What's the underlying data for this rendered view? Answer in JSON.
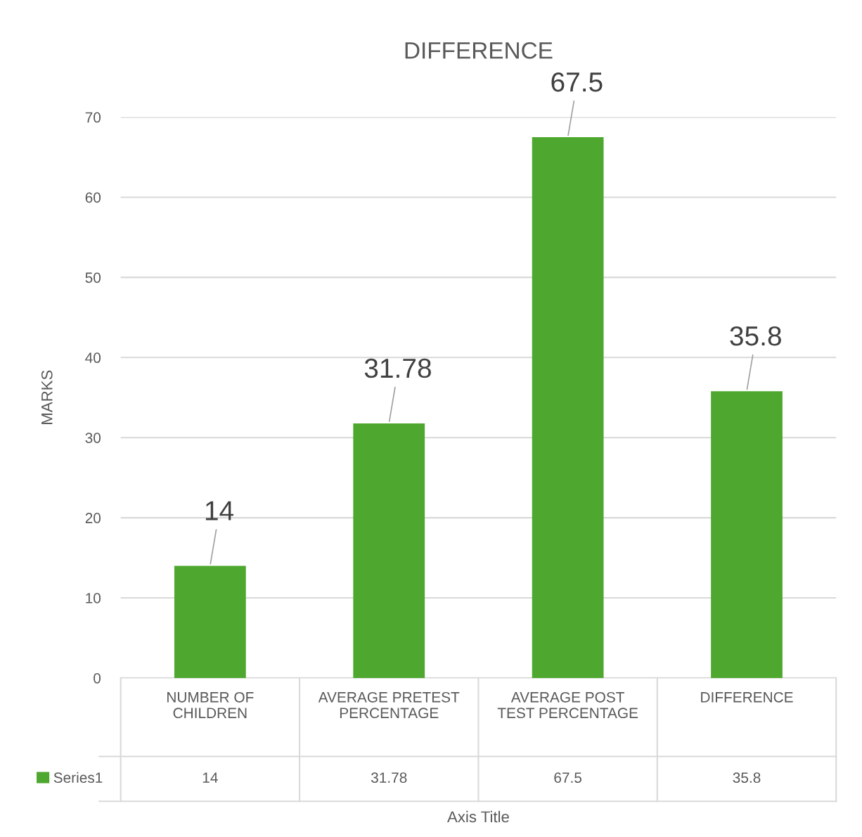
{
  "chart_data": {
    "type": "bar",
    "title": "DIFFERENCE",
    "ylabel": "MARKS",
    "annotations": [
      "14",
      "31.78",
      "67.5",
      "35.8",
      "Axis Title"
    ],
    "categories": [
      "NUMBER OF CHILDREN",
      "AVERAGE PRETEST PERCENTAGE",
      "AVERAGE POST TEST PERCENTAGE",
      "DIFFERENCE"
    ],
    "series": [
      {
        "name": "Series1",
        "color": "#4ea72e",
        "values": [
          14,
          31.78,
          67.5,
          35.8
        ],
        "value_labels": [
          "14",
          "31.78",
          "67.5",
          "35.8"
        ]
      }
    ],
    "ylim": [
      0,
      70
    ],
    "yticks": [
      0,
      10,
      20,
      30,
      40,
      50,
      60,
      70
    ],
    "grid": "y",
    "legend": "bottom left"
  }
}
